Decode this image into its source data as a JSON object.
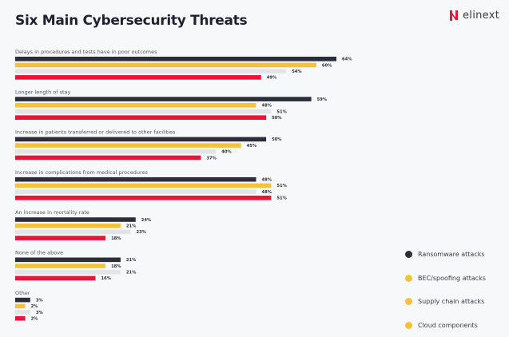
{
  "title": "Six Main Cybersecurity Threats",
  "brand": "elinext",
  "colors": {
    "ransomware": "#2b2d3b",
    "bec": "#f4c33d",
    "supply": "#e3e4e8",
    "cloud": "#ee1236",
    "legend_dot_dark": "#2b2d3b",
    "legend_dot_yellow": "#f4c33d"
  },
  "legend": [
    {
      "label": "Ransomware attacks",
      "dot": "#2b2d3b"
    },
    {
      "label": "BEC/spoofing attacks",
      "dot": "#f4c33d"
    },
    {
      "label": "Supply chain attacks",
      "dot": "#f4c33d"
    },
    {
      "label": "Cloud components",
      "dot": "#f4c33d"
    }
  ],
  "chart_data": {
    "type": "bar",
    "orientation": "horizontal",
    "title": "Six Main Cybersecurity Threats",
    "unit": "%",
    "categories": [
      "Delays in procedures and tests have in poor outcomes",
      "Longer length of stay",
      "Increase in patients transferred or delivered to other facilities",
      "Increase in complications from medical procedures",
      "An increase in mortality rate",
      "None of the above",
      "Other"
    ],
    "series": [
      {
        "name": "Ransomware attacks",
        "color": "#2b2d3b",
        "values": [
          64,
          59,
          50,
          48,
          24,
          21,
          3
        ]
      },
      {
        "name": "BEC/spoofing attacks",
        "color": "#f4c33d",
        "values": [
          60,
          48,
          45,
          51,
          21,
          18,
          2
        ]
      },
      {
        "name": "Supply chain attacks",
        "color": "#e3e4e8",
        "values": [
          54,
          51,
          40,
          48,
          23,
          21,
          3
        ]
      },
      {
        "name": "Cloud components",
        "color": "#ee1236",
        "values": [
          49,
          50,
          37,
          51,
          18,
          16,
          2
        ]
      }
    ],
    "legend_position": "bottom-right",
    "grid": false
  }
}
